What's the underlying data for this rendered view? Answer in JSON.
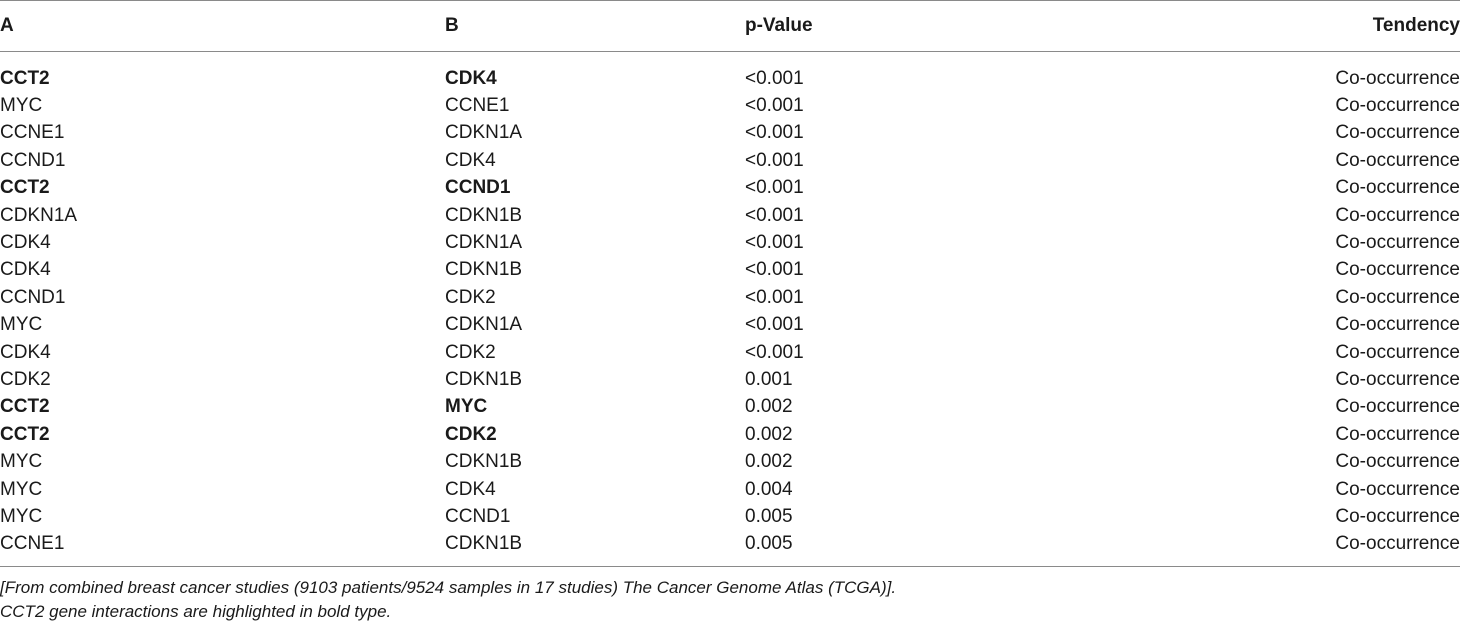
{
  "table": {
    "headers": [
      "A",
      "B",
      "p-Value",
      "Tendency"
    ],
    "rows": [
      {
        "a": "CCT2",
        "b": "CDK4",
        "p": "<0.001",
        "t": "Co-occurrence",
        "bold": true
      },
      {
        "a": "MYC",
        "b": "CCNE1",
        "p": "<0.001",
        "t": "Co-occurrence",
        "bold": false
      },
      {
        "a": "CCNE1",
        "b": "CDKN1A",
        "p": "<0.001",
        "t": "Co-occurrence",
        "bold": false
      },
      {
        "a": "CCND1",
        "b": "CDK4",
        "p": "<0.001",
        "t": "Co-occurrence",
        "bold": false
      },
      {
        "a": "CCT2",
        "b": "CCND1",
        "p": "<0.001",
        "t": "Co-occurrence",
        "bold": true
      },
      {
        "a": "CDKN1A",
        "b": "CDKN1B",
        "p": "<0.001",
        "t": "Co-occurrence",
        "bold": false
      },
      {
        "a": "CDK4",
        "b": "CDKN1A",
        "p": "<0.001",
        "t": "Co-occurrence",
        "bold": false
      },
      {
        "a": "CDK4",
        "b": "CDKN1B",
        "p": "<0.001",
        "t": "Co-occurrence",
        "bold": false
      },
      {
        "a": "CCND1",
        "b": "CDK2",
        "p": "<0.001",
        "t": "Co-occurrence",
        "bold": false
      },
      {
        "a": "MYC",
        "b": "CDKN1A",
        "p": "<0.001",
        "t": "Co-occurrence",
        "bold": false
      },
      {
        "a": "CDK4",
        "b": "CDK2",
        "p": "<0.001",
        "t": "Co-occurrence",
        "bold": false
      },
      {
        "a": "CDK2",
        "b": "CDKN1B",
        "p": "0.001",
        "t": "Co-occurrence",
        "bold": false
      },
      {
        "a": "CCT2",
        "b": "MYC",
        "p": "0.002",
        "t": "Co-occurrence",
        "bold": true
      },
      {
        "a": "CCT2",
        "b": "CDK2",
        "p": "0.002",
        "t": "Co-occurrence",
        "bold": true
      },
      {
        "a": "MYC",
        "b": "CDKN1B",
        "p": "0.002",
        "t": "Co-occurrence",
        "bold": false
      },
      {
        "a": "MYC",
        "b": "CDK4",
        "p": "0.004",
        "t": "Co-occurrence",
        "bold": false
      },
      {
        "a": "MYC",
        "b": "CCND1",
        "p": "0.005",
        "t": "Co-occurrence",
        "bold": false
      },
      {
        "a": "CCNE1",
        "b": "CDKN1B",
        "p": "0.005",
        "t": "Co-occurrence",
        "bold": false
      }
    ]
  },
  "footnotes": {
    "source": "[From combined breast cancer studies (9103 patients/9524 samples in 17 studies) The Cancer Genome Atlas (TCGA)].",
    "note": "CCT2 gene interactions are highlighted in bold type."
  }
}
